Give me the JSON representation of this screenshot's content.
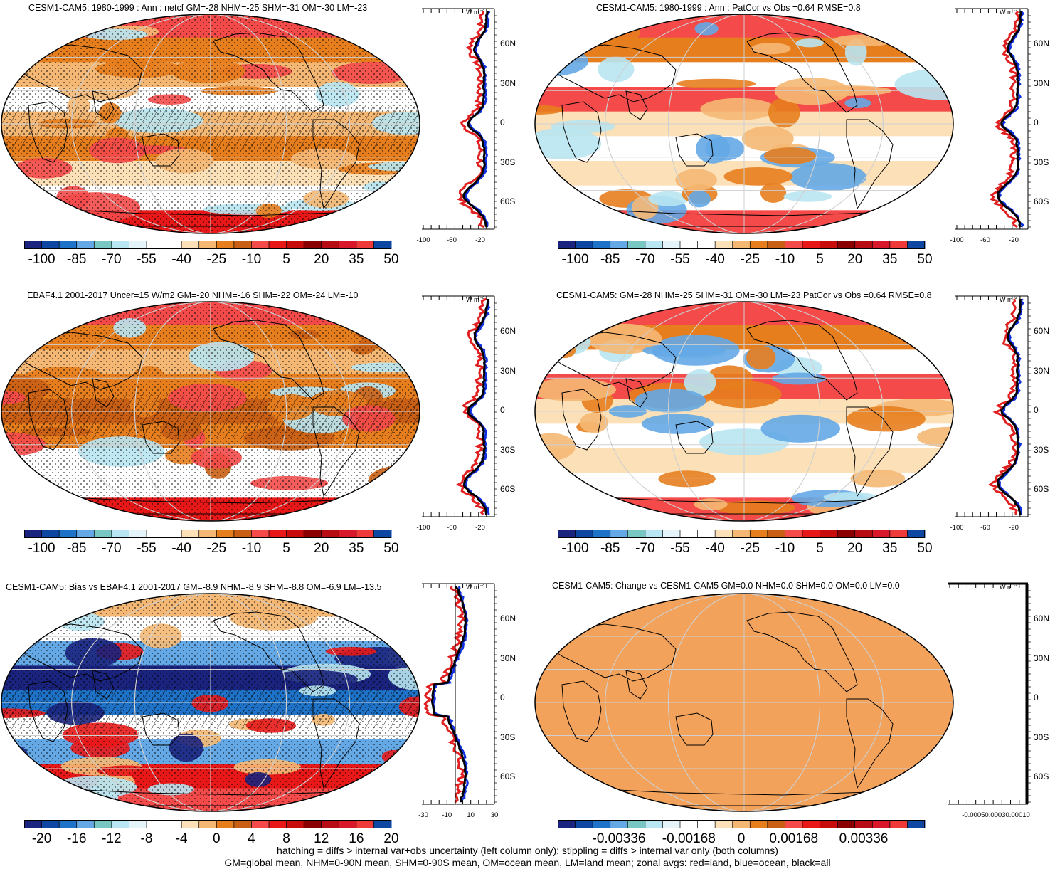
{
  "colormap_main": [
    "#1a237e",
    "#0d47a1",
    "#1e73c8",
    "#64a8e6",
    "#79c7c2",
    "#b8e6f2",
    "#e4f4f8",
    "#ffffff",
    "#ffffff",
    "#fbe0b8",
    "#f5b874",
    "#e77e1e",
    "#c95f14",
    "#f44a4a",
    "#e81818",
    "#c80c0c",
    "#8a0000",
    "#b80c14",
    "#d8182a",
    "#ef3a3a",
    "#0d47a1"
  ],
  "colormap_change": [
    "#1a237e",
    "#0d47a1",
    "#1e73c8",
    "#64a8e6",
    "#79c7c2",
    "#b8e6f2",
    "#e4f4f8",
    "#ffffff",
    "#ffffff",
    "#fbe0b8",
    "#f5b874",
    "#e77e1e",
    "#c95f14",
    "#f44a4a",
    "#e81818",
    "#c80c0c",
    "#8a0000",
    "#b80c14",
    "#d8182a",
    "#ef3a3a",
    "#0d47a1"
  ],
  "colors": {
    "land": "#e02020",
    "ocean": "#1030e0",
    "all": "#000000",
    "change_fill": "#f2a25b"
  },
  "cb_main_labels": [
    "-100",
    "-85",
    "-70",
    "-55",
    "-40",
    "-25",
    "-10",
    "5",
    "20",
    "35",
    "50"
  ],
  "cb_diff_labels": [
    "-20",
    "-16",
    "-12",
    "-8",
    "-4",
    "0",
    "4",
    "8",
    "12",
    "16",
    "20"
  ],
  "cb_change_labels": [
    "-0.00336",
    "-0.00168",
    "0",
    "0.00168",
    "0.00336"
  ],
  "lat_labels": [
    "60N",
    "30N",
    "0",
    "30S",
    "60S"
  ],
  "zonal_unit": "W m",
  "zonal_unit_sup": "-2",
  "zonal_ticks_main": [
    "-100",
    "-60",
    "-20"
  ],
  "zonal_ticks_diff": [
    "-30",
    "-10",
    "10",
    "30"
  ],
  "zonal_ticks_change": [
    "-0.00050.00030.00010"
  ],
  "panels": [
    {
      "title": "CESM1-CAM5: 1980-1999 : Ann : netcf GM=-28 NHM=-25 SHM=-31 OM=-30 LM=-23",
      "kind": "model"
    },
    {
      "title": "CESM1-CAM5: 1980-1999 : Ann : PatCor vs Obs =0.64 RMSE=0.8",
      "kind": "model-smooth"
    },
    {
      "title": "EBAF4.1 2001-2017 Uncer=15 W/m2 GM=-20 NHM=-16 SHM=-22 OM=-24 LM=-10",
      "kind": "obs"
    },
    {
      "title": "CESM1-CAM5: GM=-28 NHM=-25 SHM=-31 OM=-30 LM=-23 PatCor vs Obs =0.64 RMSE=0.8",
      "kind": "model-smooth"
    },
    {
      "title": "CESM1-CAM5: Bias vs EBAF4.1 2001-2017 GM=-8.9 NHM=-8.9 SHM=-8.8 OM=-6.9 LM=-13.5",
      "kind": "bias"
    },
    {
      "title": "CESM1-CAM5: Change vs CESM1-CAM5 GM=0.0 NHM=0.0 SHM=0.0 OM=0.0 LM=0.0",
      "kind": "change"
    }
  ],
  "footer": {
    "line1": "hatching = diffs > internal var+obs uncertainty (left column only); stippling = diffs > internal var only (both columns)",
    "line2": "GM=global mean, NHM=0-90N mean, SHM=0-90S mean, OM=ocean mean, LM=land mean; zonal avgs: red=land, blue=ocean, black=all"
  }
}
